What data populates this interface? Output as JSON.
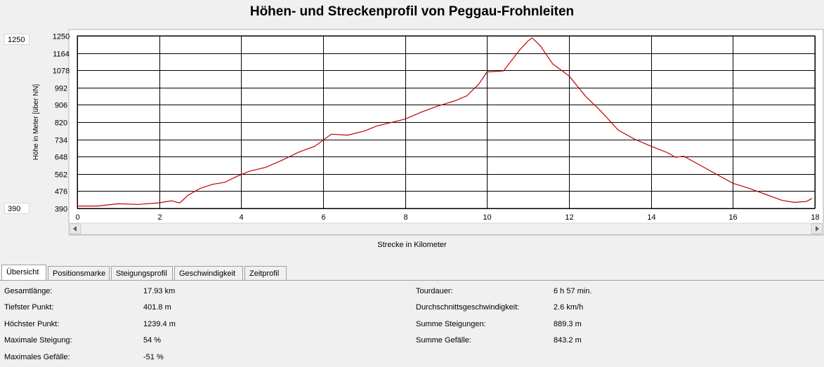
{
  "title": "Höhen- und Streckenprofil von Peggau-Frohnleiten",
  "range_max": "1250",
  "range_min": "390",
  "chart_data": {
    "type": "line",
    "title": "Höhen- und Streckenprofil von Peggau-Frohnleiten",
    "xlabel": "Strecke in Kilometer",
    "ylabel": "Höhe in Meter [über NN]",
    "xlim": [
      0,
      18
    ],
    "ylim": [
      390,
      1250
    ],
    "x_ticks": [
      "0",
      "2",
      "4",
      "6",
      "8",
      "10",
      "12",
      "14",
      "16",
      "18"
    ],
    "y_ticks": [
      "390",
      "476",
      "562",
      "648",
      "734",
      "820",
      "906",
      "992",
      "1078",
      "1164",
      "1250"
    ],
    "grid": true,
    "colors": {
      "line": "#c00000",
      "grid": "#000000",
      "plot_bg": "#ffffff"
    },
    "series": [
      {
        "x": [
          0,
          0.5,
          1,
          1.5,
          2,
          2.3,
          2.5,
          2.7,
          3,
          3.3,
          3.6,
          3.9,
          4.2,
          4.6,
          5,
          5.4,
          5.8,
          6,
          6.2,
          6.6,
          7,
          7.3,
          7.6,
          8,
          8.4,
          8.8,
          9.2,
          9.5,
          9.8,
          10,
          10.4,
          10.8,
          11,
          11.1,
          11.3,
          11.6,
          12,
          12.4,
          12.8,
          13.2,
          13.6,
          14,
          14.4,
          14.6,
          14.8,
          15.2,
          15.6,
          16,
          16.4,
          16.8,
          17.2,
          17.5,
          17.8,
          17.93
        ],
        "y": [
          401.8,
          402,
          413,
          410,
          418,
          428,
          417,
          455,
          490,
          510,
          520,
          550,
          575,
          595,
          630,
          670,
          700,
          730,
          760,
          755,
          775,
          800,
          815,
          835,
          870,
          900,
          925,
          950,
          1010,
          1070,
          1075,
          1180,
          1225,
          1239.4,
          1200,
          1110,
          1050,
          950,
          870,
          780,
          735,
          700,
          668,
          645,
          650,
          605,
          560,
          515,
          490,
          460,
          430,
          420,
          425,
          440
        ]
      }
    ]
  },
  "tabs": [
    {
      "label": "Übersicht"
    },
    {
      "label": "Positionsmarke"
    },
    {
      "label": "Steigungsprofil"
    },
    {
      "label": "Geschwindigkeit"
    },
    {
      "label": "Zeitprofil"
    }
  ],
  "stats_left": [
    {
      "label": "Gesamtlänge:",
      "value": "17.93 km"
    },
    {
      "label": "Tiefster Punkt:",
      "value": "401.8 m"
    },
    {
      "label": "Höchster Punkt:",
      "value": "1239.4 m"
    },
    {
      "label": "Maximale Steigung:",
      "value": "54 %"
    },
    {
      "label": "Maximales Gefälle:",
      "value": "-51 %"
    }
  ],
  "stats_right": [
    {
      "label": "Tourdauer:",
      "value": "6 h 57 min."
    },
    {
      "label": "Durchschnittsgeschwindigkeit:",
      "value": "2.6 km/h"
    },
    {
      "label": "Summe Steigungen:",
      "value": "889.3 m"
    },
    {
      "label": "Summe Gefälle:",
      "value": "843.2 m"
    }
  ]
}
